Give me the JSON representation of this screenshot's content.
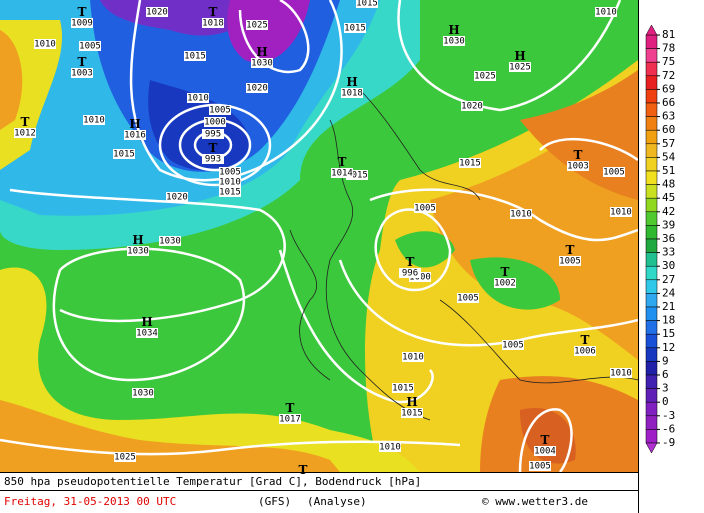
{
  "footer": {
    "title": "850 hpa pseudopotentielle Temperatur [Grad C], Bodendruck [hPa]",
    "date": "Freitag, 31-05-2013  00 UTC",
    "model": "(GFS)",
    "run": "(Analyse)",
    "copyright": "© www.wetter3.de"
  },
  "colorbar": [
    81,
    78,
    75,
    72,
    69,
    66,
    63,
    60,
    57,
    54,
    51,
    48,
    45,
    42,
    39,
    36,
    33,
    30,
    27,
    24,
    21,
    18,
    15,
    12,
    9,
    6,
    3,
    0,
    -3,
    -6,
    -9
  ],
  "centers": [
    {
      "letter": "T",
      "value": 1009
    },
    {
      "letter": "T",
      "value": 1003
    },
    {
      "letter": "T",
      "value": 1012
    },
    {
      "letter": "T",
      "value": 1018
    },
    {
      "letter": "H",
      "value": 1030
    },
    {
      "letter": "H",
      "value": 1030
    },
    {
      "letter": "H",
      "value": 1025
    },
    {
      "letter": "H",
      "value": 1016
    },
    {
      "letter": "H",
      "value": 1018
    },
    {
      "letter": "T",
      "value": 993
    },
    {
      "letter": "T",
      "value": 1014
    },
    {
      "letter": "H",
      "value": 1030
    },
    {
      "letter": "T",
      "value": 996
    },
    {
      "letter": "T",
      "value": 1002
    },
    {
      "letter": "T",
      "value": 1005
    },
    {
      "letter": "T",
      "value": 1003
    },
    {
      "letter": "H",
      "value": 1034
    },
    {
      "letter": "T",
      "value": 1017
    },
    {
      "letter": "H",
      "value": 1015
    },
    {
      "letter": "T",
      "value": 1006
    },
    {
      "letter": "T",
      "value": 1004
    },
    {
      "letter": "T"
    }
  ],
  "isobar_labels": [
    1020,
    1015,
    1010,
    1010,
    1005,
    1025,
    1015,
    1020,
    1010,
    1005,
    1000,
    995,
    1015,
    1010,
    1015,
    1025,
    1020,
    1015,
    1005,
    1010,
    1015,
    1015,
    1020,
    1030,
    1005,
    1010,
    1005,
    1010,
    1000,
    1005,
    1005,
    1010,
    1010,
    1030,
    1015,
    1010,
    1025,
    1005
  ]
}
